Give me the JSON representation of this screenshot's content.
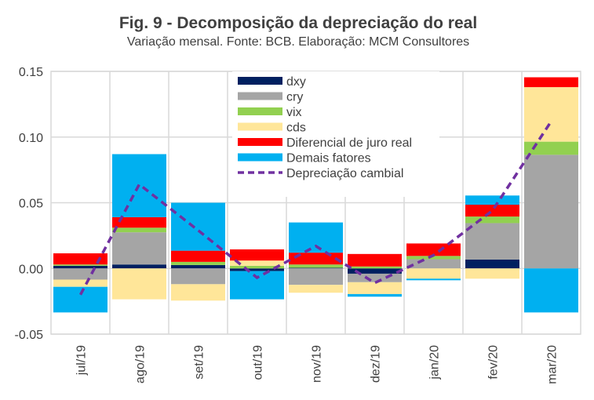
{
  "chart_data": {
    "type": "bar",
    "stacked": true,
    "title": "Fig. 9 - Decomposição da depreciação do real",
    "subtitle": "Variação mensal. Fonte: BCB. Elaboração: MCM Consultores",
    "xlabel": "",
    "ylabel": "",
    "ylim": [
      -0.05,
      0.15
    ],
    "yticks": [
      0.15,
      0.1,
      0.05,
      0.0,
      -0.05
    ],
    "ytick_labels": [
      "0.15",
      "0.10",
      "0.05",
      "0.00",
      "-0.05"
    ],
    "grid": true,
    "legend_position": "top-center",
    "categories": [
      "jul/19",
      "ago/19",
      "set/19",
      "out/19",
      "nov/19",
      "dez/19",
      "jan/20",
      "fev/20",
      "mar/20"
    ],
    "series": [
      {
        "name": "dxy",
        "color": "#002060",
        "values": [
          0.002,
          0.003,
          0.0026,
          -0.002,
          0.0005,
          -0.004,
          0.0,
          0.0068,
          0.0
        ]
      },
      {
        "name": "cry",
        "color": "#A5A5A5",
        "values": [
          -0.0085,
          0.0245,
          -0.012,
          0.0,
          -0.0125,
          -0.0065,
          0.007,
          0.0277,
          0.0865
        ]
      },
      {
        "name": "vix",
        "color": "#92D050",
        "values": [
          0.001,
          0.0035,
          0.0024,
          0.002,
          0.0025,
          0.0015,
          0.0025,
          0.005,
          0.01
        ]
      },
      {
        "name": "cds",
        "color": "#FFE699",
        "values": [
          -0.0055,
          -0.0235,
          -0.0125,
          0.004,
          -0.006,
          -0.009,
          -0.0078,
          -0.0078,
          0.0415
        ]
      },
      {
        "name": "Diferencial de juro real",
        "color": "#FF0000",
        "values": [
          0.0085,
          0.008,
          0.0085,
          0.0085,
          0.009,
          0.0095,
          0.0095,
          0.009,
          0.0075
        ]
      },
      {
        "name": "Demais fatores",
        "color": "#00B0F0",
        "values": [
          -0.0195,
          0.048,
          0.0365,
          -0.0215,
          0.023,
          -0.002,
          -0.0012,
          0.007,
          -0.0335
        ]
      }
    ],
    "line_series": {
      "name": "Depreciação cambial",
      "color": "#7030A0",
      "style": "dashed",
      "values": [
        -0.02,
        0.064,
        0.029,
        -0.007,
        0.017,
        -0.011,
        0.01,
        0.044,
        0.112
      ]
    }
  }
}
